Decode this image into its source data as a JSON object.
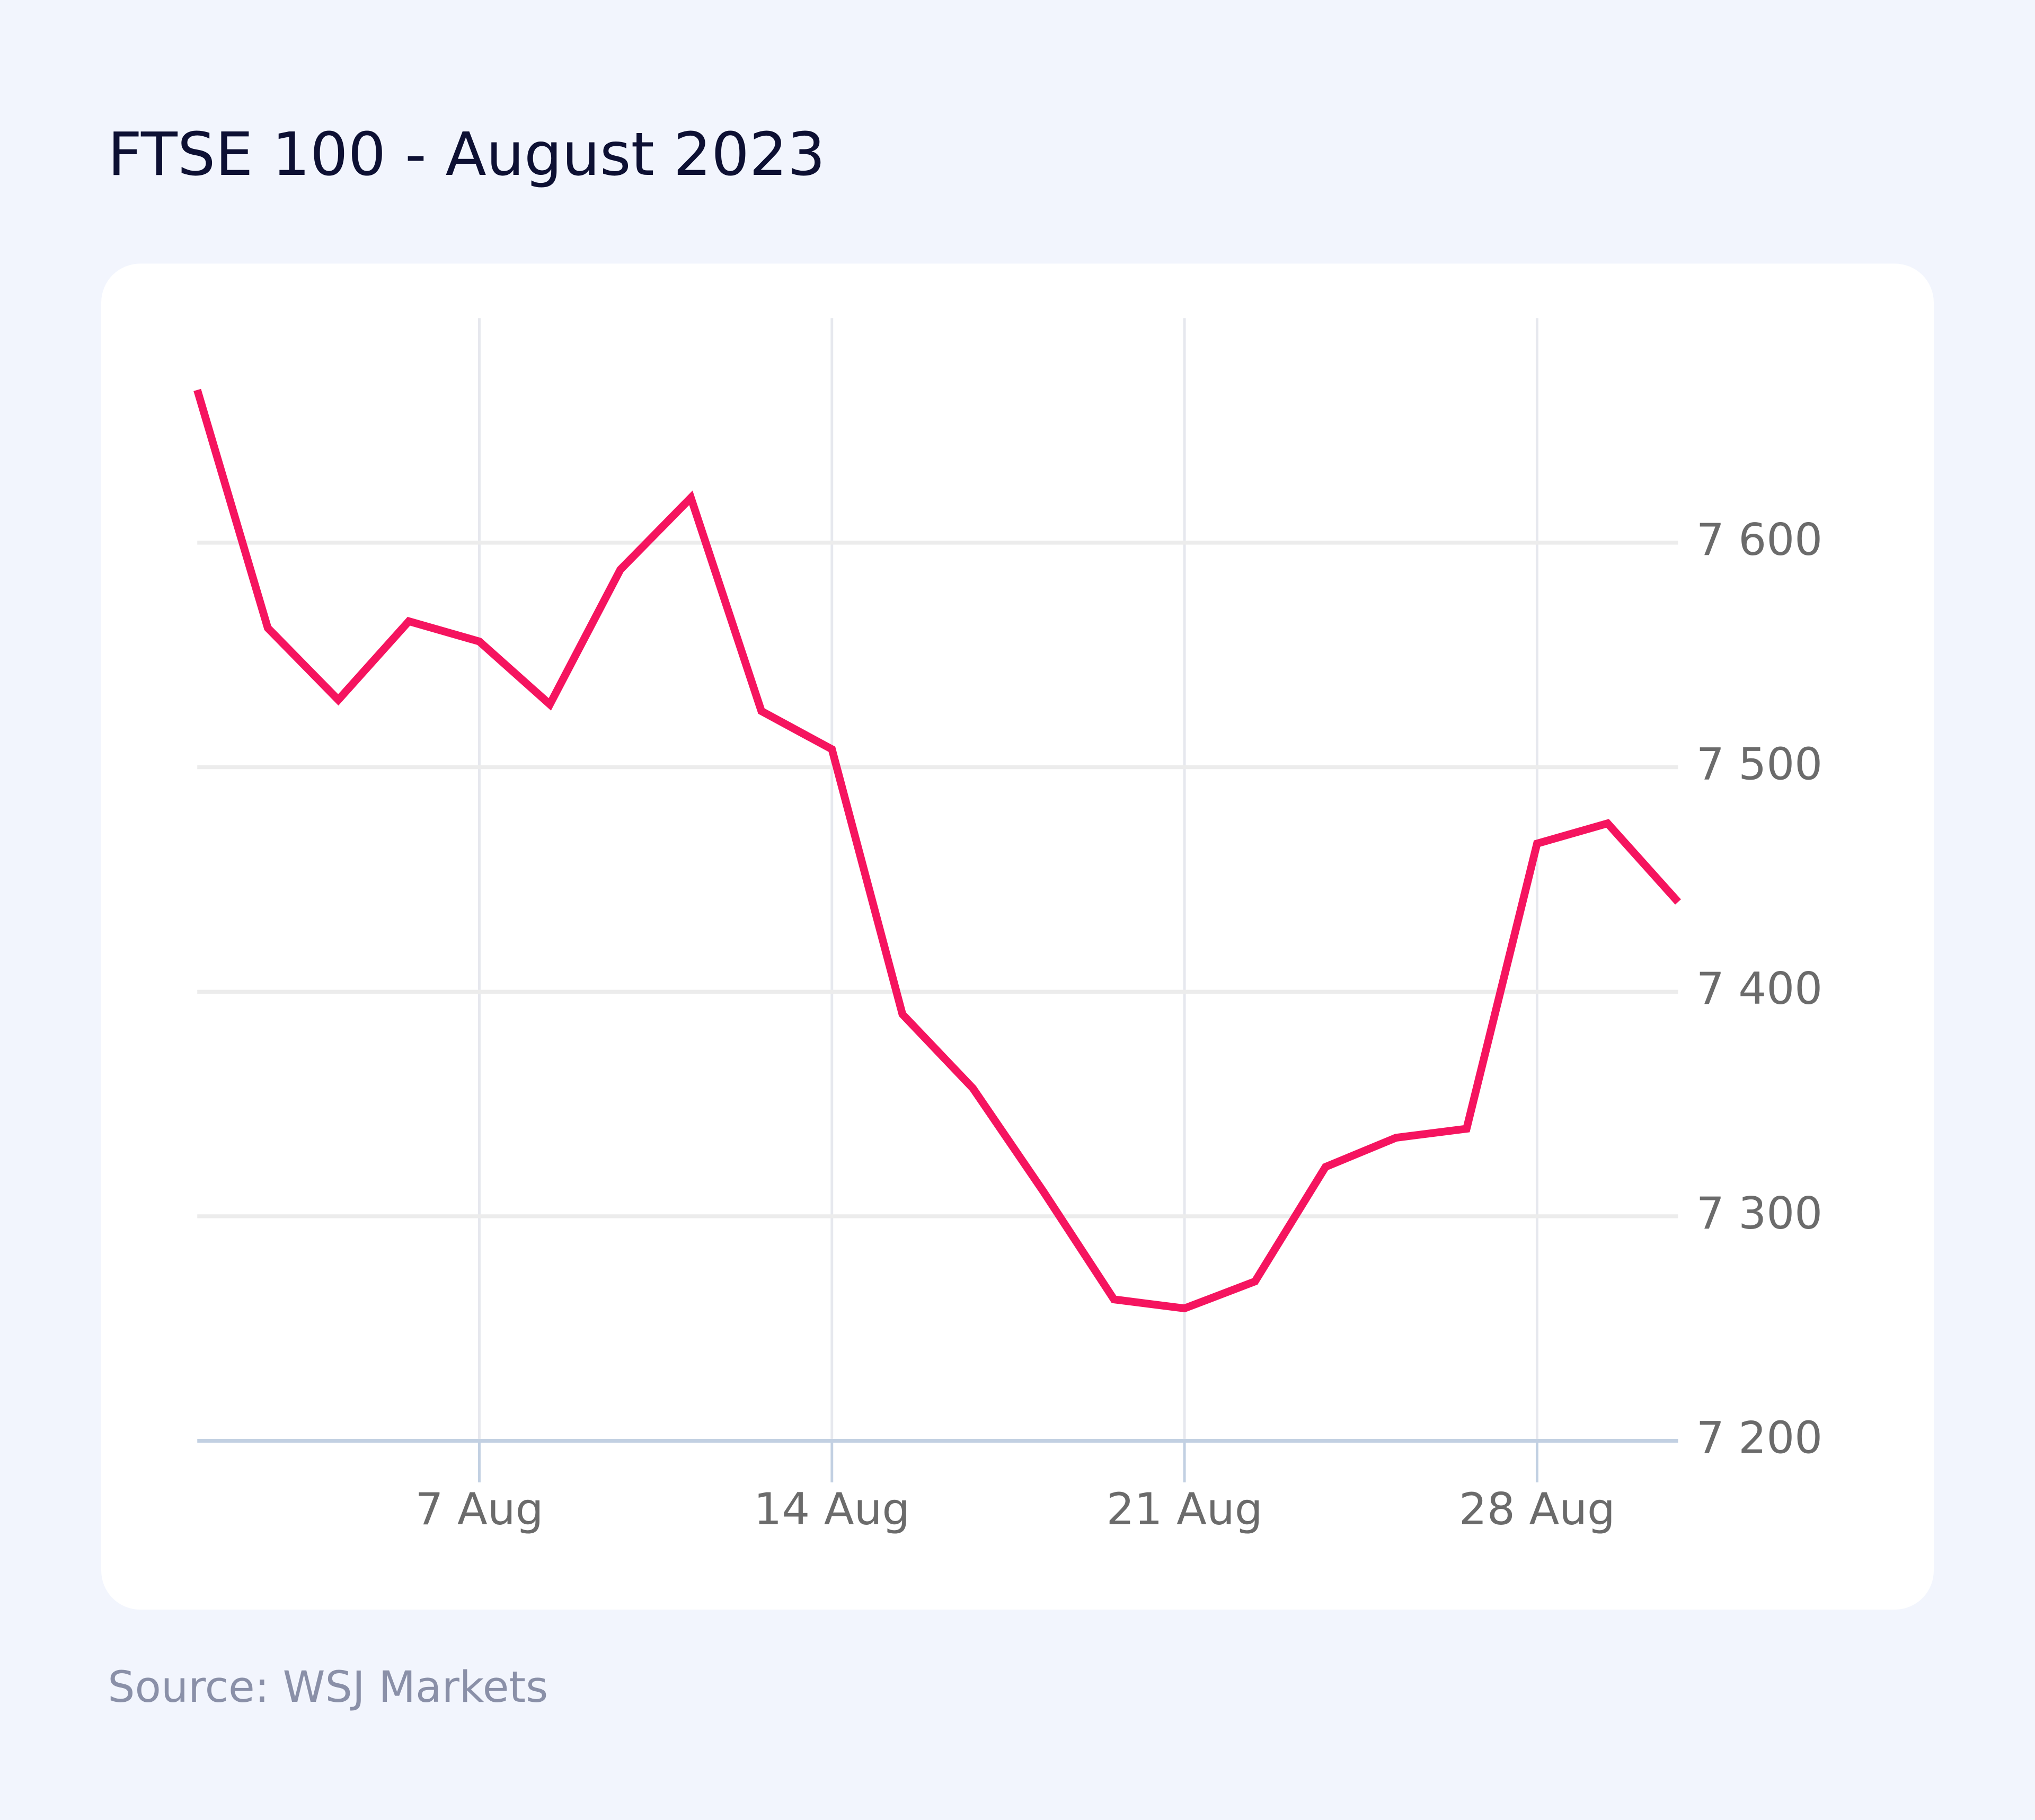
{
  "chart_data": {
    "type": "line",
    "title": "FTSE 100 - August 2023",
    "source": "Source: WSJ Markets",
    "categories": [
      null,
      null,
      null,
      null,
      "7 Aug",
      null,
      null,
      null,
      null,
      "14 Aug",
      null,
      null,
      null,
      null,
      "21 Aug",
      null,
      null,
      null,
      null,
      "28 Aug",
      null,
      null
    ],
    "series": [
      {
        "name": "FTSE 100",
        "color": "#f5145f",
        "values": [
          7668,
          7562,
          7530,
          7565,
          7556,
          7528,
          7588,
          7620,
          7525,
          7508,
          7390,
          7357,
          7311,
          7263,
          7259,
          7271,
          7322,
          7335,
          7339,
          7466,
          7475,
          7440
        ]
      }
    ],
    "ylim": [
      7200,
      7700
    ],
    "yticks": [
      {
        "value": 7200,
        "label": "7 200"
      },
      {
        "value": 7300,
        "label": "7 300"
      },
      {
        "value": 7400,
        "label": "7 400"
      },
      {
        "value": 7500,
        "label": "7 500"
      },
      {
        "value": 7600,
        "label": "7 600"
      }
    ],
    "grid": true
  }
}
